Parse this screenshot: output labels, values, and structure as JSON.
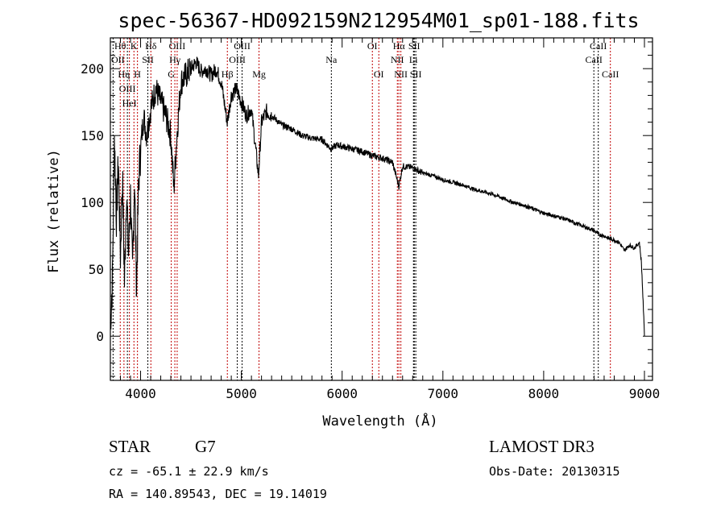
{
  "chart_data": {
    "type": "line",
    "title": "spec-56367-HD092159N212954M01_sp01-188.fits",
    "xlabel": "Wavelength (Å)",
    "ylabel": "Flux (relative)",
    "xlim": [
      3700,
      9080
    ],
    "ylim": [
      -33,
      223
    ],
    "xticks": [
      4000,
      5000,
      6000,
      7000,
      8000,
      9000
    ],
    "yticks": [
      0,
      50,
      100,
      150,
      200
    ],
    "grid": false,
    "series": [
      {
        "name": "spectrum",
        "x": [
          3700,
          3720,
          3740,
          3760,
          3780,
          3800,
          3820,
          3840,
          3860,
          3880,
          3900,
          3920,
          3940,
          3960,
          3980,
          4000,
          4030,
          4060,
          4100,
          4150,
          4200,
          4250,
          4300,
          4330,
          4360,
          4400,
          4450,
          4500,
          4550,
          4600,
          4650,
          4700,
          4750,
          4800,
          4860,
          4900,
          4950,
          5000,
          5050,
          5100,
          5170,
          5200,
          5250,
          5300,
          5400,
          5500,
          5600,
          5700,
          5800,
          5890,
          5950,
          6000,
          6100,
          6200,
          6300,
          6400,
          6500,
          6563,
          6600,
          6700,
          6800,
          6900,
          7000,
          7100,
          7200,
          7300,
          7400,
          7500,
          7600,
          7700,
          7800,
          7900,
          8000,
          8100,
          8200,
          8300,
          8400,
          8500,
          8550,
          8600,
          8650,
          8700,
          8750,
          8800,
          8850,
          8900,
          8950,
          8970,
          8990,
          9000
        ],
        "y": [
          10,
          40,
          150,
          90,
          130,
          60,
          120,
          40,
          110,
          60,
          105,
          45,
          120,
          35,
          115,
          140,
          165,
          150,
          170,
          185,
          175,
          165,
          150,
          110,
          150,
          190,
          195,
          200,
          205,
          198,
          200,
          195,
          200,
          190,
          160,
          180,
          185,
          175,
          165,
          170,
          120,
          160,
          168,
          165,
          158,
          155,
          150,
          148,
          147,
          140,
          143,
          142,
          140,
          138,
          135,
          133,
          130,
          112,
          127,
          126,
          122,
          120,
          117,
          115,
          113,
          110,
          108,
          106,
          103,
          100,
          98,
          95,
          92,
          90,
          88,
          85,
          82,
          79,
          76,
          75,
          73,
          72,
          70,
          64,
          68,
          66,
          70,
          55,
          20,
          0
        ]
      }
    ],
    "lines": [
      {
        "w": 3727,
        "label": "OII",
        "row": 2,
        "color": "#000000"
      },
      {
        "w": 3798,
        "label": "Hθ",
        "row": 1,
        "color": "#c00000"
      },
      {
        "w": 3835,
        "label": "Hη",
        "row": 3,
        "color": "#c00000"
      },
      {
        "w": 3869,
        "label": "OIII",
        "row": 3,
        "color": "#000000"
      },
      {
        "w": 3889,
        "label": "HeI",
        "row": 2,
        "color": "#c00000"
      },
      {
        "w": 3934,
        "label": "K",
        "row": 1,
        "color": "#c00000"
      },
      {
        "w": 3969,
        "label": "H",
        "row": 3,
        "color": "#c00000"
      },
      {
        "w": 4072,
        "label": "SII",
        "row": 2,
        "color": "#000000"
      },
      {
        "w": 4102,
        "label": "Hδ",
        "row": 1,
        "color": "#c00000"
      },
      {
        "w": 4304,
        "label": "G",
        "row": 3,
        "color": "#c00000"
      },
      {
        "w": 4340,
        "label": "Hγ",
        "row": 2,
        "color": "#c00000"
      },
      {
        "w": 4363,
        "label": "OIII",
        "row": 1,
        "color": "#c00000"
      },
      {
        "w": 4861,
        "label": "Hβ",
        "row": 3,
        "color": "#c00000"
      },
      {
        "w": 4959,
        "label": "OIII",
        "row": 2,
        "color": "#000000"
      },
      {
        "w": 5007,
        "label": "OIII",
        "row": 1,
        "color": "#000000"
      },
      {
        "w": 5175,
        "label": "Mg",
        "row": 3,
        "color": "#c00000"
      },
      {
        "w": 5893,
        "label": "Na",
        "row": 2,
        "color": "#000000"
      },
      {
        "w": 6300,
        "label": "OI",
        "row": 1,
        "color": "#c00000"
      },
      {
        "w": 6364,
        "label": "OI",
        "row": 3,
        "color": "#c00000"
      },
      {
        "w": 6548,
        "label": "NII",
        "row": 2,
        "color": "#c00000"
      },
      {
        "w": 6563,
        "label": "Hα",
        "row": 1,
        "color": "#c00000"
      },
      {
        "w": 6583,
        "label": "NII",
        "row": 3,
        "color": "#c00000"
      },
      {
        "w": 6708,
        "label": "Li",
        "row": 2,
        "color": "#000000"
      },
      {
        "w": 6716,
        "label": "SII",
        "row": 1,
        "color": "#000000"
      },
      {
        "w": 6731,
        "label": "SII",
        "row": 3,
        "color": "#000000"
      },
      {
        "w": 8498,
        "label": "CaII",
        "row": 2,
        "color": "#000000"
      },
      {
        "w": 8542,
        "label": "CaII",
        "row": 1,
        "color": "#000000"
      },
      {
        "w": 8662,
        "label": "CaII",
        "row": 3,
        "color": "#c00000"
      }
    ]
  },
  "info": {
    "class": "STAR",
    "subclass": "G7",
    "cz": "cz = -65.1 ± 22.9 km/s",
    "radec": "RA = 140.89543, DEC =  19.14019",
    "survey": "LAMOST DR3",
    "obsdate": "Obs-Date: 20130315"
  }
}
